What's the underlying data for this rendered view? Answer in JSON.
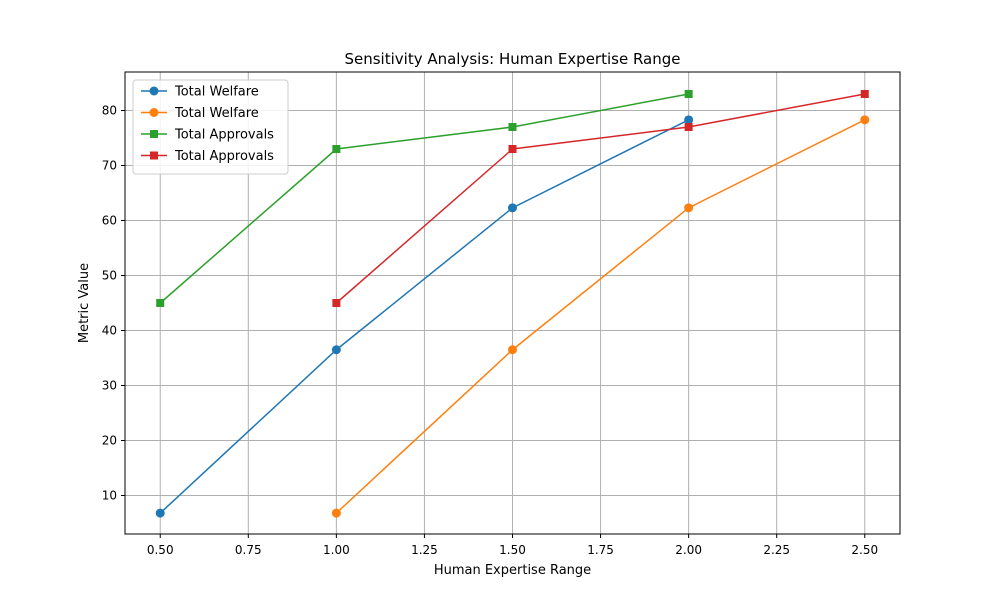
{
  "chart_data": {
    "type": "line",
    "title": "Sensitivity Analysis: Human Expertise Range",
    "xlabel": "Human Expertise Range",
    "ylabel": "Metric Value",
    "xlim": [
      0.4,
      2.6
    ],
    "ylim": [
      3.0,
      87.0
    ],
    "xticks": [
      0.5,
      0.75,
      1.0,
      1.25,
      1.5,
      1.75,
      2.0,
      2.25,
      2.5
    ],
    "xtick_labels": [
      "0.50",
      "0.75",
      "1.00",
      "1.25",
      "1.50",
      "1.75",
      "2.00",
      "2.25",
      "2.50"
    ],
    "yticks": [
      10,
      20,
      30,
      40,
      50,
      60,
      70,
      80
    ],
    "ytick_labels": [
      "10",
      "20",
      "30",
      "40",
      "50",
      "60",
      "70",
      "80"
    ],
    "grid": true,
    "legend_position": "top-left",
    "series": [
      {
        "name": "Total Welfare",
        "color": "#1f77b4",
        "marker": "circle",
        "x": [
          0.5,
          1.0,
          1.5,
          2.0
        ],
        "y": [
          6.8,
          36.5,
          62.3,
          78.3
        ]
      },
      {
        "name": "Total Welfare",
        "color": "#ff7f0e",
        "marker": "circle",
        "x": [
          1.0,
          1.5,
          2.0,
          2.5
        ],
        "y": [
          6.8,
          36.5,
          62.3,
          78.3
        ]
      },
      {
        "name": "Total Approvals",
        "color": "#2ca02c",
        "marker": "square",
        "x": [
          0.5,
          1.0,
          1.5,
          2.0
        ],
        "y": [
          45,
          73,
          77,
          83
        ]
      },
      {
        "name": "Total Approvals",
        "color": "#d62728",
        "marker": "square",
        "x": [
          1.0,
          1.5,
          2.0,
          2.5
        ],
        "y": [
          45,
          73,
          77,
          83
        ]
      }
    ]
  }
}
